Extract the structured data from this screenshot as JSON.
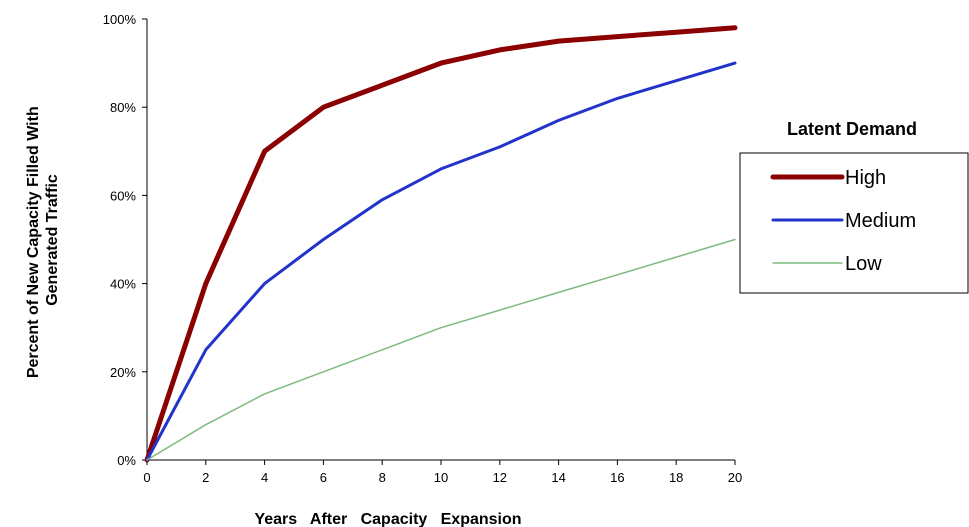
{
  "chart_data": {
    "type": "line",
    "title": "",
    "xlabel": "Years   After   Capacity   Expansion",
    "ylabel": [
      "Percent of New Capacity Filled With",
      "Generated Traffic"
    ],
    "x": [
      0,
      2,
      4,
      6,
      8,
      10,
      12,
      14,
      16,
      18,
      20
    ],
    "xlim": [
      0,
      20
    ],
    "ylim": [
      0,
      100
    ],
    "x_ticks": [
      "0",
      "2",
      "4",
      "6",
      "8",
      "10",
      "12",
      "14",
      "16",
      "18",
      "20"
    ],
    "y_ticks": [
      "0%",
      "20%",
      "40%",
      "60%",
      "80%",
      "100%"
    ],
    "grid": false,
    "legend": {
      "title": "Latent Demand",
      "placement": "right"
    },
    "series": [
      {
        "name": "High",
        "color": "#8B0000",
        "values": [
          0,
          40,
          70,
          80,
          85,
          90,
          93,
          95,
          96,
          97,
          98
        ]
      },
      {
        "name": "Medium",
        "color": "#2233CC",
        "values": [
          0,
          25,
          40,
          50,
          59,
          66,
          71,
          77,
          82,
          86,
          90
        ]
      },
      {
        "name": "Low",
        "color": "#7DBB7D",
        "values": [
          0,
          8,
          15,
          20,
          25,
          30,
          34,
          38,
          42,
          46,
          50
        ]
      }
    ]
  }
}
